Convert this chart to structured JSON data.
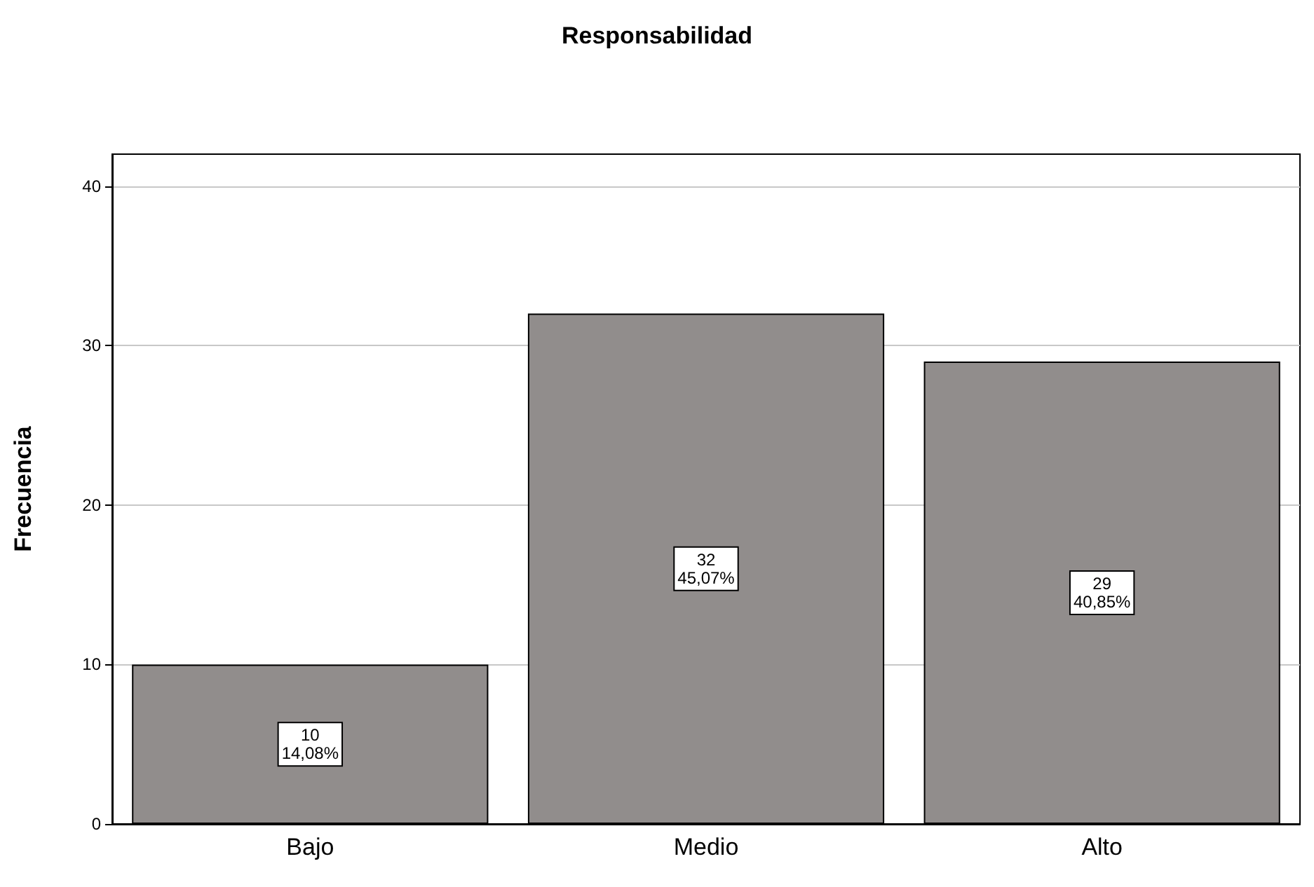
{
  "chart_data": {
    "type": "bar",
    "title": "Responsabilidad",
    "ylabel": "Frecuencia",
    "categories": [
      "Bajo",
      "Medio",
      "Alto"
    ],
    "values": [
      10,
      32,
      29
    ],
    "value_labels": [
      "10\n14,08%",
      "32\n45,07%",
      "29\n40,85%"
    ],
    "color": "#918d8c",
    "ylim": [
      0,
      42
    ],
    "yticks": [
      0,
      10,
      20,
      30,
      40
    ],
    "grid": "y"
  }
}
